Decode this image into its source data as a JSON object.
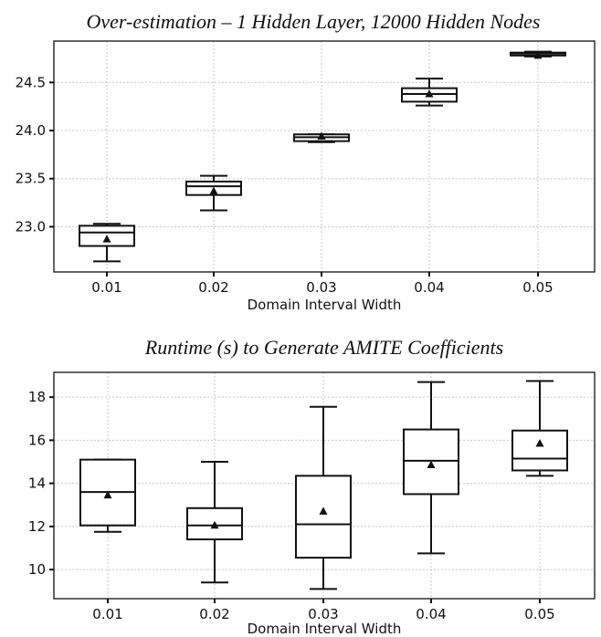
{
  "chart_data": [
    {
      "type": "box",
      "title": "Over-estimation – 1 Hidden Layer, 12000 Hidden Nodes",
      "xlabel": "Domain Interval Width",
      "ylabel": "",
      "categories": [
        "0.01",
        "0.02",
        "0.03",
        "0.04",
        "0.05"
      ],
      "ylim": [
        22.53,
        24.93
      ],
      "yticks": [
        23.0,
        23.5,
        24.0,
        24.5
      ],
      "ytick_labels": [
        "23.0",
        "23.5",
        "24.0",
        "24.5"
      ],
      "grid": true,
      "boxes": [
        {
          "whisker_low": 22.64,
          "q1": 22.8,
          "median": 22.94,
          "q3": 23.01,
          "whisker_high": 23.03,
          "mean": 22.87
        },
        {
          "whisker_low": 23.17,
          "q1": 23.33,
          "median": 23.42,
          "q3": 23.47,
          "whisker_high": 23.53,
          "mean": 23.37
        },
        {
          "whisker_low": 23.88,
          "q1": 23.89,
          "median": 23.93,
          "q3": 23.96,
          "whisker_high": 23.96,
          "mean": 23.94
        },
        {
          "whisker_low": 24.26,
          "q1": 24.3,
          "median": 24.38,
          "q3": 24.44,
          "whisker_high": 24.54,
          "mean": 24.38
        },
        {
          "whisker_low": 24.77,
          "q1": 24.78,
          "median": 24.8,
          "q3": 24.81,
          "whisker_high": 24.82,
          "mean": 24.78
        }
      ]
    },
    {
      "type": "box",
      "title": "Runtime (s) to Generate AMITE Coefficients",
      "xlabel": "Domain Interval Width",
      "ylabel": "",
      "categories": [
        "0.01",
        "0.02",
        "0.03",
        "0.04",
        "0.05"
      ],
      "ylim": [
        8.65,
        19.15
      ],
      "yticks": [
        10,
        12,
        14,
        16,
        18
      ],
      "ytick_labels": [
        "10",
        "12",
        "14",
        "16",
        "18"
      ],
      "grid": true,
      "boxes": [
        {
          "whisker_low": 11.75,
          "q1": 12.05,
          "median": 13.6,
          "q3": 15.1,
          "whisker_high": 15.1,
          "mean": 13.45
        },
        {
          "whisker_low": 9.4,
          "q1": 11.4,
          "median": 12.05,
          "q3": 12.85,
          "whisker_high": 15.0,
          "mean": 12.05
        },
        {
          "whisker_low": 9.1,
          "q1": 10.55,
          "median": 12.1,
          "q3": 14.35,
          "whisker_high": 17.55,
          "mean": 12.7
        },
        {
          "whisker_low": 10.75,
          "q1": 13.5,
          "median": 15.05,
          "q3": 16.5,
          "whisker_high": 18.7,
          "mean": 14.85
        },
        {
          "whisker_low": 14.35,
          "q1": 14.6,
          "median": 15.15,
          "q3": 16.45,
          "whisker_high": 18.75,
          "mean": 15.85
        }
      ]
    }
  ]
}
